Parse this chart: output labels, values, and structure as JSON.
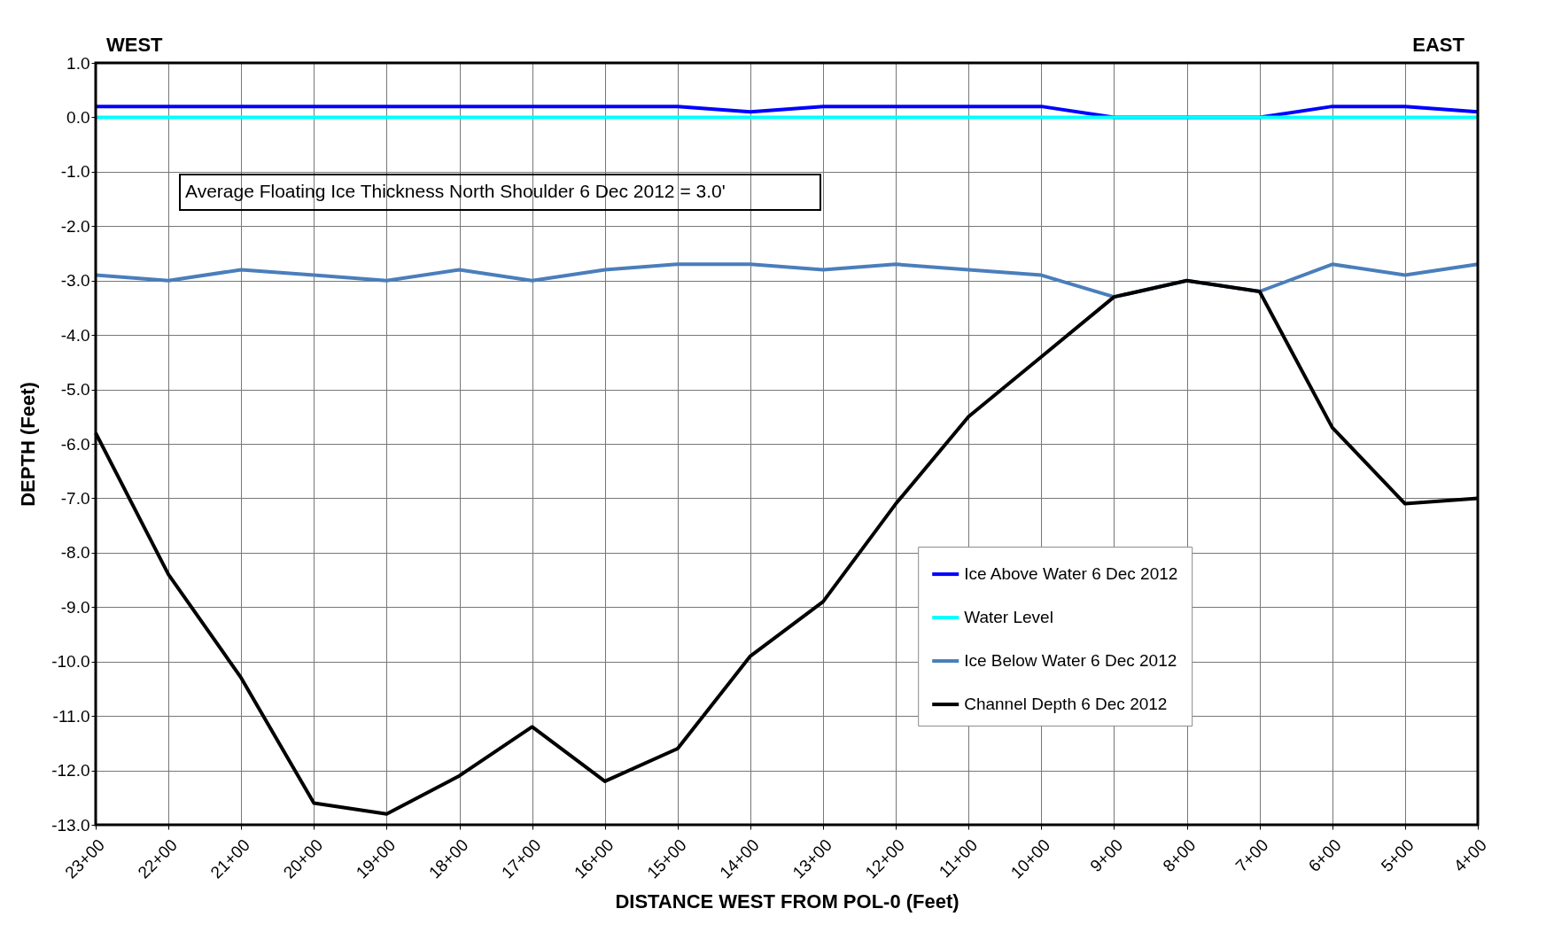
{
  "chart_data": {
    "type": "line",
    "xlabel": "DISTANCE WEST FROM POL-0 (Feet)",
    "ylabel": "DEPTH (Feet)",
    "categories": [
      "23+00",
      "22+00",
      "21+00",
      "20+00",
      "19+00",
      "18+00",
      "17+00",
      "16+00",
      "15+00",
      "14+00",
      "13+00",
      "12+00",
      "11+00",
      "10+00",
      "9+00",
      "8+00",
      "7+00",
      "6+00",
      "5+00",
      "4+00"
    ],
    "series": [
      {
        "name": "Ice Above Water 6 Dec 2012",
        "color": "#0000ff",
        "values": [
          0.2,
          0.2,
          0.2,
          0.2,
          0.2,
          0.2,
          0.2,
          0.2,
          0.2,
          0.1,
          0.2,
          0.2,
          0.2,
          0.2,
          0.0,
          0.0,
          0.0,
          0.2,
          0.2,
          0.1
        ]
      },
      {
        "name": "Water Level",
        "color": "#00ffff",
        "values": [
          0,
          0,
          0,
          0,
          0,
          0,
          0,
          0,
          0,
          0,
          0,
          0,
          0,
          0,
          0,
          0,
          0,
          0,
          0,
          0
        ]
      },
      {
        "name": "Ice Below Water 6 Dec 2012",
        "color": "#4a7ebb",
        "values": [
          -2.9,
          -3.0,
          -2.8,
          -2.9,
          -3.0,
          -2.8,
          -3.0,
          -2.8,
          -2.7,
          -2.7,
          -2.8,
          -2.7,
          -2.8,
          -2.9,
          -3.3,
          -3.0,
          -3.2,
          -2.7,
          -2.9,
          -2.7
        ]
      },
      {
        "name": "Channel Depth 6 Dec 2012",
        "color": "#000000",
        "values": [
          -5.8,
          -8.4,
          -10.3,
          -12.6,
          -12.8,
          -12.1,
          -11.2,
          -12.2,
          -11.6,
          -9.9,
          -8.9,
          -7.1,
          -5.5,
          -4.4,
          -3.3,
          -3.0,
          -3.2,
          -5.7,
          -7.1,
          -7.0
        ]
      }
    ],
    "ylim": [
      -13,
      1
    ],
    "yticks": [
      {
        "value": 1,
        "label": "1.0"
      },
      {
        "value": 0,
        "label": "0.0"
      },
      {
        "value": -1,
        "label": "-1.0"
      },
      {
        "value": -2,
        "label": "-2.0"
      },
      {
        "value": -3,
        "label": "-3.0"
      },
      {
        "value": -4,
        "label": "-4.0"
      },
      {
        "value": -5,
        "label": "-5.0"
      },
      {
        "value": -6,
        "label": "-6.0"
      },
      {
        "value": -7,
        "label": "-7.0"
      },
      {
        "value": -8,
        "label": "-8.0"
      },
      {
        "value": -9,
        "label": "-9.0"
      },
      {
        "value": -10,
        "label": "-10.0"
      },
      {
        "value": -11,
        "label": "-11.0"
      },
      {
        "value": -12,
        "label": "-12.0"
      },
      {
        "value": -13,
        "label": "-13.0"
      }
    ],
    "annotations": [
      "WEST",
      "EAST",
      "Average Floating Ice Thickness North Shoulder   6 Dec  2012 = 3.0'"
    ],
    "grid": true,
    "legend": "bottom right",
    "marker": "none",
    "line_style": "solid"
  }
}
